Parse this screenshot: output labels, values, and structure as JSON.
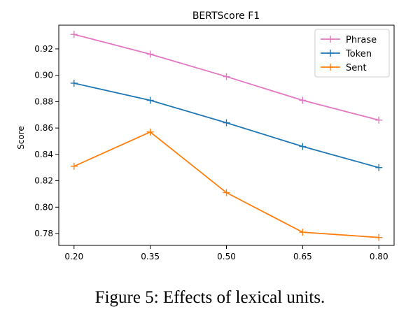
{
  "chart_data": {
    "type": "line",
    "title": "BERTScore F1",
    "xlabel": "",
    "ylabel": "Score",
    "x": [
      0.2,
      0.35,
      0.5,
      0.65,
      0.8
    ],
    "x_tick_labels": [
      "0.20",
      "0.35",
      "0.50",
      "0.65",
      "0.80"
    ],
    "y_ticks": [
      0.78,
      0.8,
      0.82,
      0.84,
      0.86,
      0.88,
      0.9,
      0.92
    ],
    "y_tick_labels": [
      "0.78",
      "0.80",
      "0.82",
      "0.84",
      "0.86",
      "0.88",
      "0.90",
      "0.92"
    ],
    "xlim": [
      0.17,
      0.83
    ],
    "ylim": [
      0.771,
      0.938
    ],
    "grid": false,
    "legend_position": "top-right",
    "marker": "plus",
    "series": [
      {
        "name": "Phrase",
        "color": "#e377c2",
        "values": [
          0.931,
          0.916,
          0.899,
          0.881,
          0.866
        ]
      },
      {
        "name": "Token",
        "color": "#1f77b4",
        "values": [
          0.894,
          0.881,
          0.864,
          0.846,
          0.83
        ]
      },
      {
        "name": "Sent",
        "color": "#ff7f0e",
        "values": [
          0.831,
          0.857,
          0.811,
          0.781,
          0.777
        ]
      }
    ]
  },
  "caption": "Figure 5: Effects of lexical units."
}
